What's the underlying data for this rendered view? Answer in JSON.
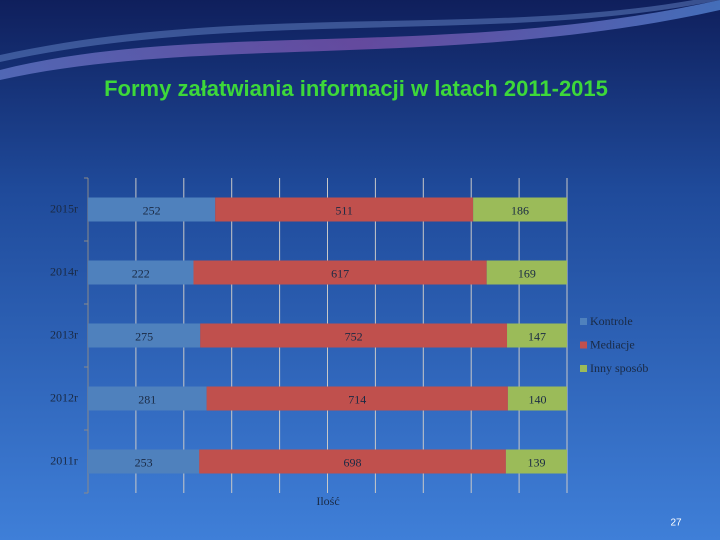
{
  "chart_data": {
    "type": "bar100h",
    "title": "Formy załatwiania informacji w latach 2011-2015",
    "x_label": "Ilość",
    "page_number": "27",
    "categories": [
      "2015r",
      "2014r",
      "2013r",
      "2012r",
      "2011r"
    ],
    "series": [
      {
        "name": "Kontrole",
        "color": "#4f81bd",
        "values": [
          252,
          222,
          275,
          281,
          253
        ]
      },
      {
        "name": "Mediacje",
        "color": "#c0504d",
        "values": [
          511,
          617,
          752,
          714,
          698
        ]
      },
      {
        "name": "Inny sposób",
        "color": "#9bbb59",
        "values": [
          186,
          169,
          147,
          140,
          139
        ]
      }
    ],
    "xlim": [
      0,
      100
    ],
    "xticks": [
      0,
      10,
      20,
      30,
      40,
      50,
      60,
      70,
      80,
      90,
      100
    ],
    "grid": true,
    "legend": "right"
  }
}
